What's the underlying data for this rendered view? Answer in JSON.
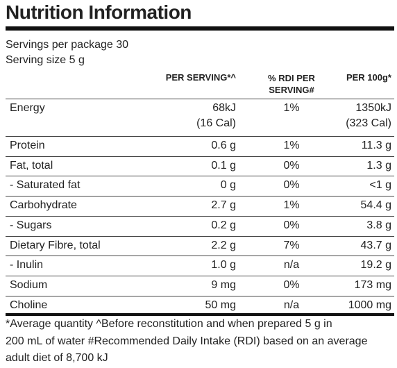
{
  "title": "Nutrition Information",
  "servings_per_package": "Servings per package 30",
  "serving_size": "Serving size 5 g",
  "table": {
    "headers": [
      "PER SERVING*^",
      "% RDI PER SERVING#",
      "PER 100g*"
    ],
    "rows": [
      {
        "label": "Energy",
        "per_serving": [
          "68kJ",
          "(16 Cal)"
        ],
        "rdi": "1%",
        "per_100g": [
          "1350kJ",
          "(323 Cal)"
        ]
      },
      {
        "label": "Protein",
        "per_serving": [
          "0.6 g"
        ],
        "rdi": "1%",
        "per_100g": [
          "11.3 g"
        ]
      },
      {
        "label": "Fat, total",
        "per_serving": [
          "0.1 g"
        ],
        "rdi": "0%",
        "per_100g": [
          "1.3 g"
        ]
      },
      {
        "label": "- Saturated fat",
        "per_serving": [
          "0 g"
        ],
        "rdi": "0%",
        "per_100g": [
          "<1 g"
        ]
      },
      {
        "label": "Carbohydrate",
        "per_serving": [
          "2.7 g"
        ],
        "rdi": "1%",
        "per_100g": [
          "54.4 g"
        ]
      },
      {
        "label": "- Sugars",
        "per_serving": [
          "0.2 g"
        ],
        "rdi": "0%",
        "per_100g": [
          "3.8 g"
        ]
      },
      {
        "label": "Dietary Fibre, total",
        "per_serving": [
          "2.2 g"
        ],
        "rdi": "7%",
        "per_100g": [
          "43.7 g"
        ]
      },
      {
        "label": "- Inulin",
        "per_serving": [
          "1.0 g"
        ],
        "rdi": "n/a",
        "per_100g": [
          "19.2 g"
        ]
      },
      {
        "label": "Sodium",
        "per_serving": [
          "9 mg"
        ],
        "rdi": "0%",
        "per_100g": [
          "173 mg"
        ]
      },
      {
        "label": "Choline",
        "per_serving": [
          "50 mg"
        ],
        "rdi": "n/a",
        "per_100g": [
          "1000 mg"
        ]
      }
    ]
  },
  "footnote": [
    "*Average quantity ^Before reconstitution and when prepared 5 g in",
    "200 mL of water #Recommended Daily Intake (RDI) based on an average",
    "adult diet of 8,700 kJ"
  ]
}
